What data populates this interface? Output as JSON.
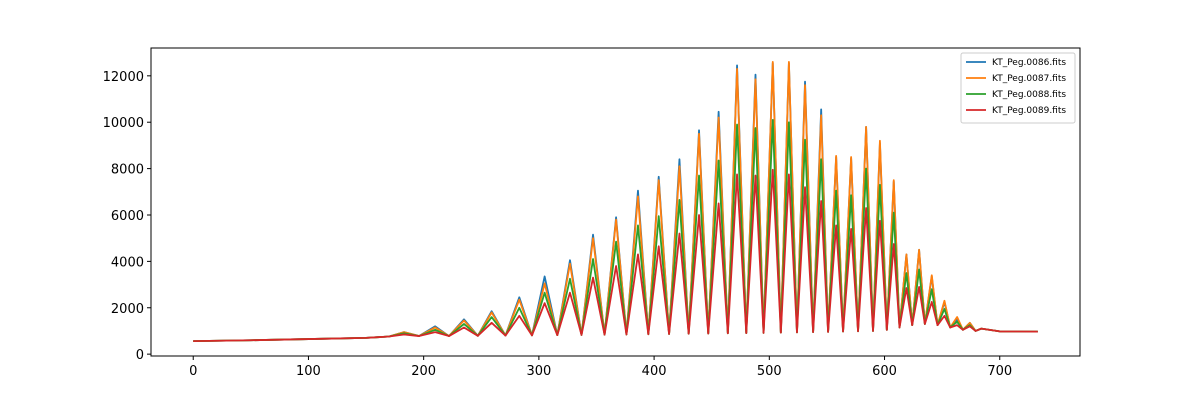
{
  "chart_data": {
    "type": "line",
    "x": [
      0,
      50,
      100,
      150,
      170,
      183,
      196,
      210,
      222,
      235,
      247,
      259,
      271,
      283,
      294,
      305,
      316,
      327,
      337,
      347,
      357,
      367,
      376,
      386,
      395,
      404,
      413,
      422,
      430,
      439,
      447,
      456,
      464,
      472,
      480,
      488,
      495,
      503,
      510,
      517,
      524,
      531,
      538,
      545,
      551,
      558,
      564,
      571,
      577,
      584,
      590,
      596,
      602,
      608,
      613,
      619,
      624,
      630,
      635,
      641,
      646,
      652,
      657,
      663,
      668,
      674,
      679,
      684,
      700,
      733
    ],
    "series": [
      {
        "name": "KT_Peg.0086.fits",
        "color": "#1f77b4",
        "values": [
          560,
          600,
          650,
          700,
          760,
          950,
          780,
          1200,
          780,
          1500,
          790,
          1850,
          800,
          2450,
          810,
          3350,
          820,
          4050,
          830,
          5150,
          840,
          5900,
          850,
          7050,
          860,
          7650,
          870,
          8400,
          880,
          9650,
          890,
          10450,
          900,
          12450,
          910,
          12050,
          920,
          12550,
          930,
          12550,
          940,
          11750,
          950,
          10550,
          960,
          8500,
          980,
          8450,
          990,
          9800,
          1000,
          9100,
          1050,
          7450,
          1150,
          4300,
          1250,
          4500,
          1300,
          3350,
          1250,
          2250,
          1150,
          1500,
          1050,
          1350,
          1000,
          1100,
          980,
          970
        ]
      },
      {
        "name": "KT_Peg.0087.fits",
        "color": "#ff7f0e",
        "values": [
          560,
          600,
          650,
          700,
          760,
          950,
          780,
          1150,
          780,
          1450,
          790,
          1800,
          800,
          2350,
          810,
          3050,
          820,
          3900,
          830,
          5000,
          840,
          5800,
          850,
          6800,
          860,
          7500,
          870,
          8100,
          880,
          9500,
          890,
          10200,
          900,
          12300,
          910,
          11850,
          920,
          12600,
          930,
          12600,
          940,
          11600,
          950,
          10300,
          960,
          8550,
          980,
          8500,
          990,
          9800,
          1000,
          9200,
          1050,
          7500,
          1150,
          4300,
          1250,
          4500,
          1300,
          3400,
          1250,
          2300,
          1150,
          1600,
          1050,
          1350,
          1000,
          1100,
          980,
          970
        ]
      },
      {
        "name": "KT_Peg.0088.fits",
        "color": "#2ca02c",
        "values": [
          560,
          600,
          650,
          700,
          760,
          900,
          780,
          1050,
          780,
          1300,
          790,
          1600,
          800,
          2000,
          810,
          2650,
          820,
          3250,
          830,
          4100,
          840,
          4850,
          850,
          5550,
          860,
          5950,
          870,
          6650,
          880,
          7700,
          890,
          8350,
          900,
          9900,
          910,
          9750,
          920,
          10100,
          930,
          10000,
          940,
          9250,
          950,
          8400,
          960,
          7050,
          980,
          6850,
          990,
          8000,
          1000,
          7300,
          1050,
          6100,
          1150,
          3500,
          1250,
          3650,
          1300,
          2800,
          1250,
          1950,
          1150,
          1400,
          1050,
          1250,
          1000,
          1100,
          980,
          970
        ]
      },
      {
        "name": "KT_Peg.0089.fits",
        "color": "#d62728",
        "values": [
          560,
          600,
          650,
          700,
          760,
          850,
          780,
          950,
          780,
          1150,
          790,
          1350,
          800,
          1650,
          810,
          2200,
          820,
          2650,
          830,
          3300,
          840,
          3800,
          850,
          4300,
          860,
          4650,
          870,
          5200,
          880,
          6000,
          890,
          6500,
          900,
          7750,
          910,
          7700,
          920,
          7950,
          930,
          7750,
          940,
          7200,
          950,
          6600,
          960,
          5550,
          980,
          5400,
          990,
          6300,
          1000,
          5750,
          1050,
          4750,
          1150,
          2850,
          1250,
          2900,
          1300,
          2250,
          1250,
          1650,
          1150,
          1250,
          1050,
          1200,
          1000,
          1100,
          980,
          970
        ]
      }
    ],
    "xlim": [
      -36.65,
      769.65
    ],
    "xticks": [
      0,
      100,
      200,
      300,
      400,
      500,
      600,
      700
    ],
    "ylim": [
      -80,
      13200
    ],
    "yticks": [
      0,
      2000,
      4000,
      6000,
      8000,
      10000,
      12000
    ],
    "legend": "upper right"
  }
}
